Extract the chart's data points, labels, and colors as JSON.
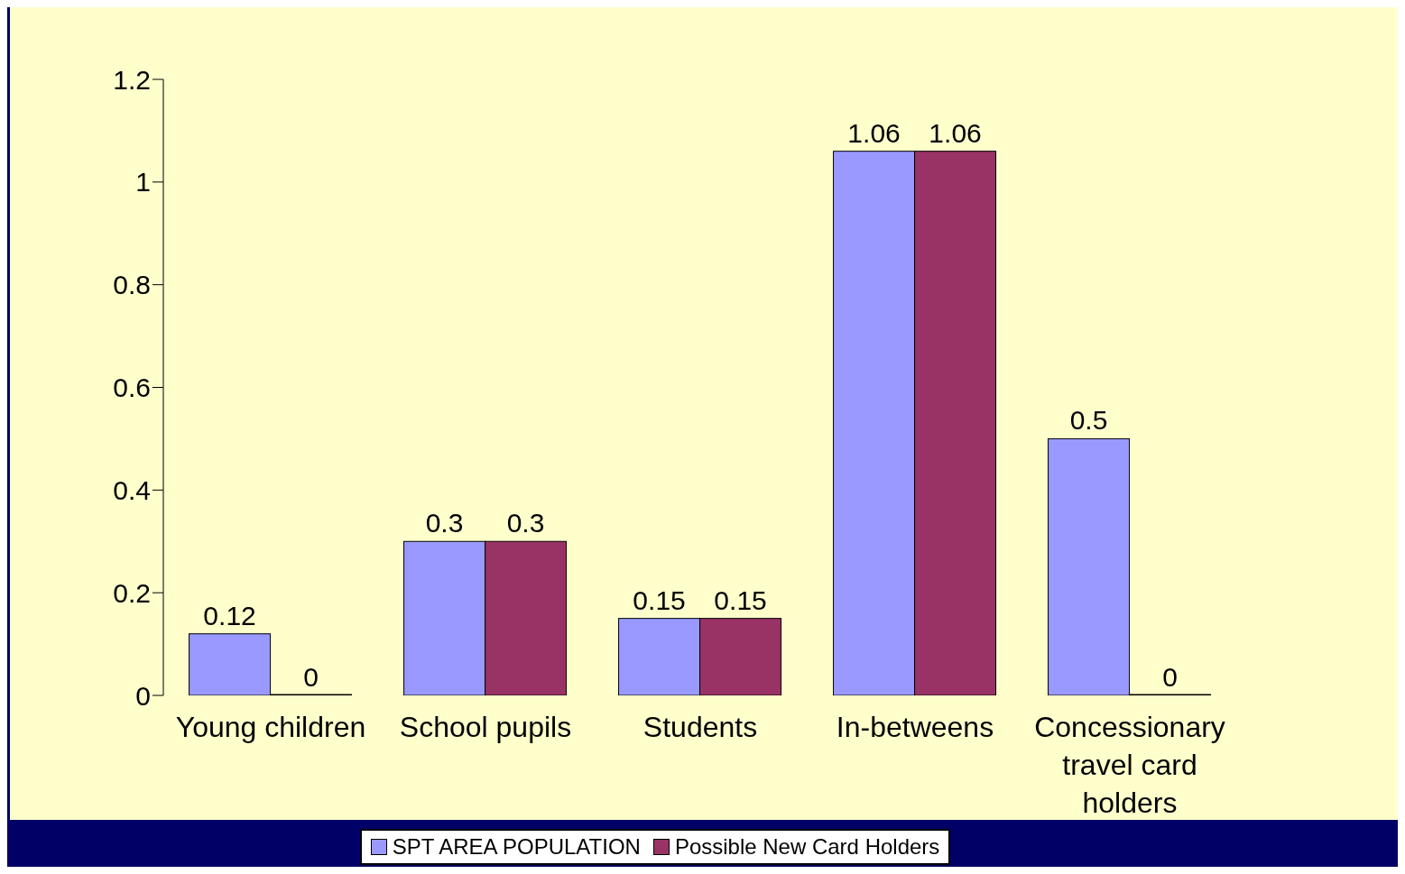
{
  "chart_data": {
    "type": "bar",
    "categories": [
      "Young children",
      "School pupils",
      "Students",
      "In-betweens",
      "Concessionary travel card holders"
    ],
    "series": [
      {
        "name": "SPT AREA POPULATION",
        "color": "#9999ff",
        "values": [
          0.12,
          0.3,
          0.15,
          1.06,
          0.5
        ]
      },
      {
        "name": "Possible New Card Holders",
        "color": "#993366",
        "values": [
          0,
          0.3,
          0.15,
          1.06,
          0
        ]
      }
    ],
    "ylim": [
      0,
      1.2
    ],
    "yticks": [
      0,
      0.2,
      0.4,
      0.6,
      0.8,
      1,
      1.2
    ],
    "data_labels": true,
    "grid": false,
    "legend": "bottom"
  }
}
